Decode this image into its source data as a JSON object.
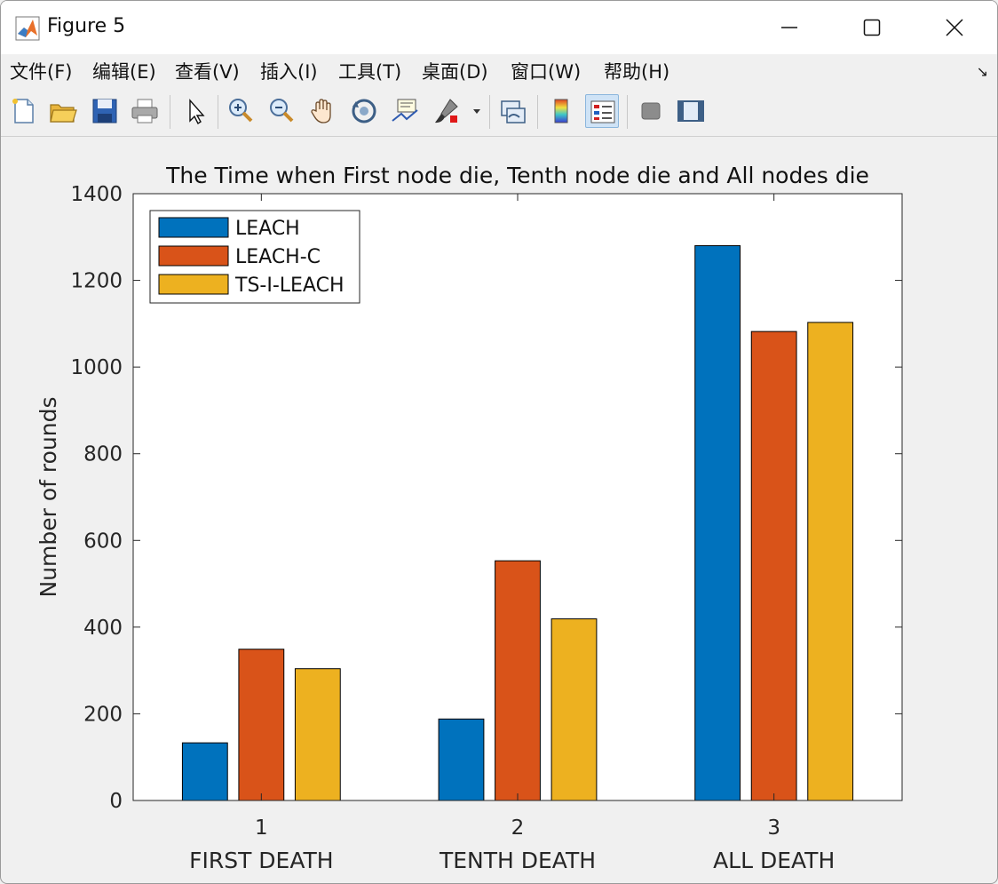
{
  "window": {
    "title": "Figure 5"
  },
  "menu": {
    "items": [
      {
        "label": "文件(F)"
      },
      {
        "label": "编辑(E)"
      },
      {
        "label": "查看(V)"
      },
      {
        "label": "插入(I)"
      },
      {
        "label": "工具(T)"
      },
      {
        "label": "桌面(D)"
      },
      {
        "label": "窗口(W)"
      },
      {
        "label": "帮助(H)"
      }
    ]
  },
  "toolbar": {
    "buttons": [
      {
        "icon": "new-figure-icon"
      },
      {
        "icon": "open-file-icon"
      },
      {
        "icon": "save-icon"
      },
      {
        "icon": "print-icon"
      },
      {
        "icon": "edit-plot-icon"
      },
      {
        "icon": "zoom-in-icon"
      },
      {
        "icon": "zoom-out-icon"
      },
      {
        "icon": "pan-icon"
      },
      {
        "icon": "rotate-3d-icon"
      },
      {
        "icon": "data-cursor-icon"
      },
      {
        "icon": "brush-icon"
      },
      {
        "icon": "link-plot-icon"
      },
      {
        "icon": "colorbar-icon"
      },
      {
        "icon": "legend-icon"
      },
      {
        "icon": "hide-plot-tools-icon"
      },
      {
        "icon": "show-plot-tools-icon"
      }
    ]
  },
  "chart_data": {
    "type": "bar",
    "title": "The Time when First node die, Tenth node die and All nodes die",
    "ylabel": "Number of rounds",
    "xlabel": "",
    "categories": [
      "1",
      "2",
      "3"
    ],
    "category_labels": [
      "FIRST DEATH",
      "TENTH DEATH",
      "ALL DEATH"
    ],
    "ylim": [
      0,
      1400
    ],
    "yticks": [
      0,
      200,
      400,
      600,
      800,
      1000,
      1200,
      1400
    ],
    "legend_position": "top-left",
    "grid": false,
    "series": [
      {
        "name": "LEACH",
        "color": "#0072BD",
        "values": [
          133,
          188,
          1280
        ]
      },
      {
        "name": "LEACH-C",
        "color": "#D95319",
        "values": [
          349,
          553,
          1082
        ]
      },
      {
        "name": "TS-I-LEACH",
        "color": "#EDB120",
        "values": [
          304,
          419,
          1103
        ]
      }
    ]
  }
}
